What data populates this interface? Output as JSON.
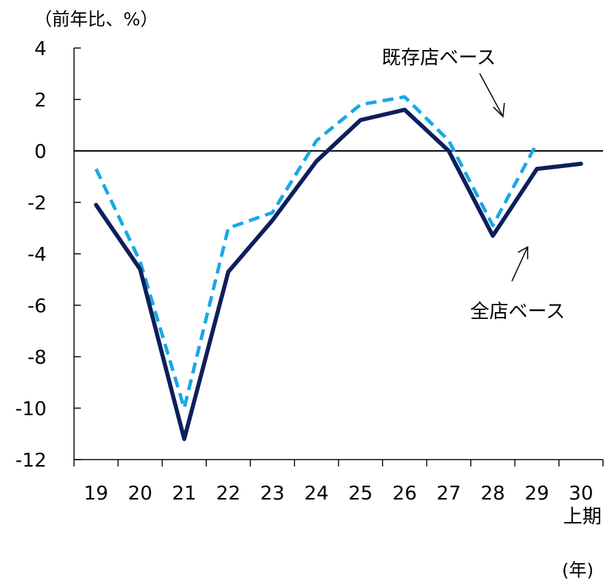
{
  "chart_data": {
    "type": "line",
    "y_unit_label": "（前年比、%）",
    "x_unit_label": "(年)",
    "categories": [
      "19",
      "20",
      "21",
      "22",
      "23",
      "24",
      "25",
      "26",
      "27",
      "28",
      "29",
      "30"
    ],
    "category_sublabels": {
      "30": "上期"
    },
    "yticks": [
      "4",
      "2",
      "0",
      "-2",
      "-4",
      "-6",
      "-8",
      "-10",
      "-12"
    ],
    "ylim": [
      -12,
      4
    ],
    "series": [
      {
        "name": "全店ベース",
        "style": "solid",
        "color": "#0d1f5c",
        "values": [
          -2.1,
          -4.6,
          -11.2,
          -4.7,
          -2.7,
          -0.4,
          1.2,
          1.6,
          0.0,
          -3.3,
          -0.7,
          -0.5
        ]
      },
      {
        "name": "既存店ベース",
        "style": "dashed",
        "color": "#1aa7e6",
        "values": [
          -0.7,
          -4.3,
          -10.0,
          -3.0,
          -2.4,
          0.4,
          1.8,
          2.1,
          0.4,
          -2.9,
          0.3,
          null
        ]
      }
    ],
    "zero_line": true,
    "grid": false
  }
}
